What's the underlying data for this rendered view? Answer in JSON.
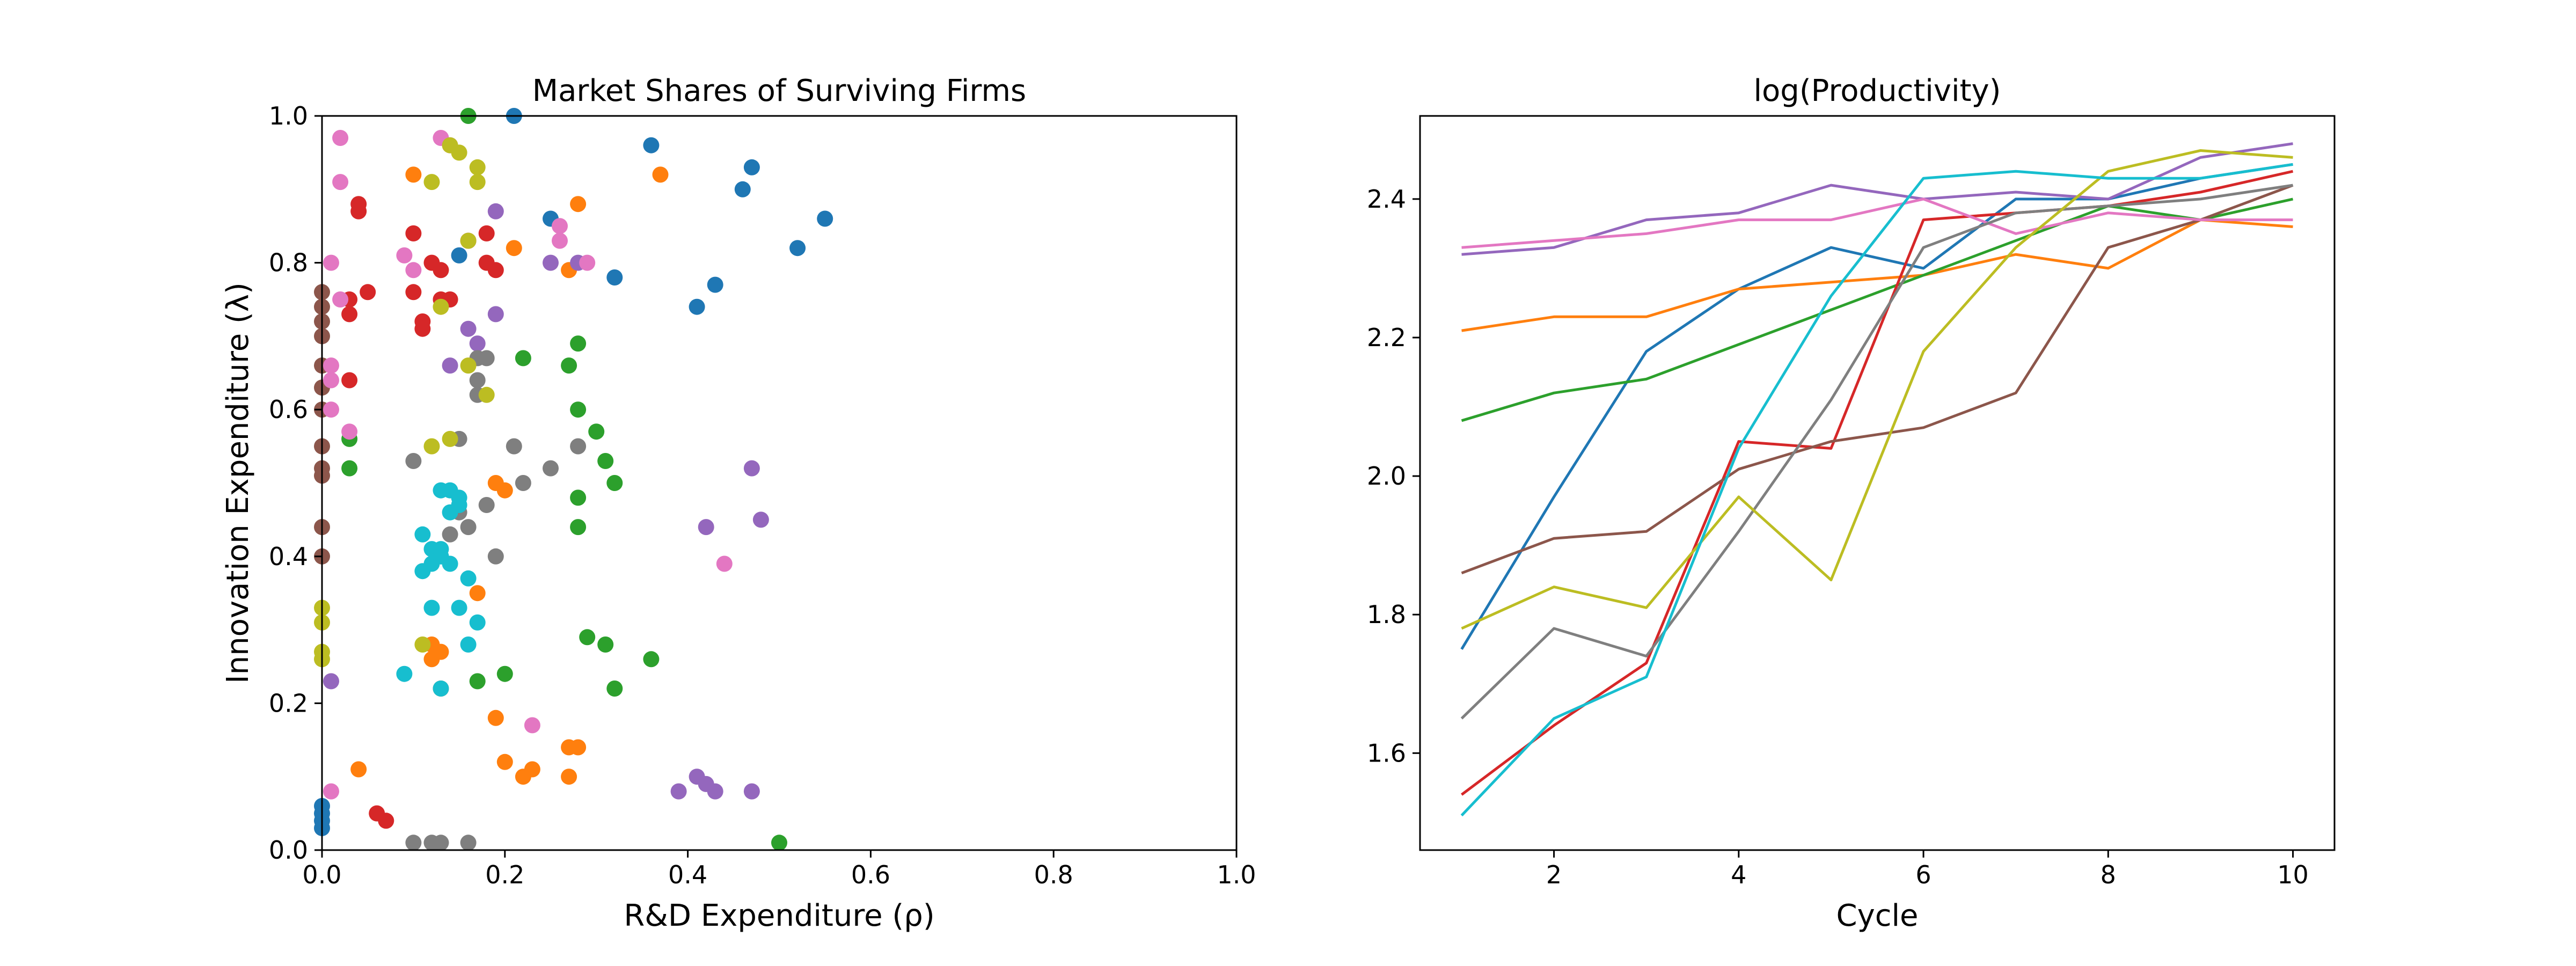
{
  "chart_data": [
    {
      "type": "scatter",
      "title": "Market Shares of Surviving Firms",
      "xlabel": "R&D Expenditure (ρ)",
      "ylabel": "Innovation Expenditure (λ)",
      "xlim": [
        0,
        1
      ],
      "ylim": [
        0,
        1
      ],
      "xticks": [
        "0.0",
        "0.2",
        "0.4",
        "0.6",
        "0.8",
        "1.0"
      ],
      "yticks": [
        "0.0",
        "0.2",
        "0.4",
        "0.6",
        "0.8",
        "1.0"
      ],
      "grid": false,
      "legend": "none",
      "series": [
        {
          "color": "#1f77b4",
          "points": [
            [
              0.0,
              0.03
            ],
            [
              0.0,
              0.04
            ],
            [
              0.0,
              0.05
            ],
            [
              0.0,
              0.06
            ],
            [
              0.15,
              0.81
            ],
            [
              0.21,
              1.0
            ],
            [
              0.25,
              0.86
            ],
            [
              0.32,
              0.78
            ],
            [
              0.36,
              0.96
            ],
            [
              0.41,
              0.74
            ],
            [
              0.43,
              0.77
            ],
            [
              0.46,
              0.9
            ],
            [
              0.47,
              0.93
            ],
            [
              0.52,
              0.82
            ],
            [
              0.55,
              0.86
            ]
          ]
        },
        {
          "color": "#ff7f0e",
          "points": [
            [
              0.04,
              0.11
            ],
            [
              0.1,
              0.92
            ],
            [
              0.12,
              0.28
            ],
            [
              0.12,
              0.26
            ],
            [
              0.13,
              0.27
            ],
            [
              0.13,
              0.22
            ],
            [
              0.17,
              0.35
            ],
            [
              0.19,
              0.5
            ],
            [
              0.19,
              0.18
            ],
            [
              0.2,
              0.49
            ],
            [
              0.2,
              0.12
            ],
            [
              0.21,
              0.82
            ],
            [
              0.22,
              0.1
            ],
            [
              0.23,
              0.11
            ],
            [
              0.27,
              0.79
            ],
            [
              0.27,
              0.14
            ],
            [
              0.27,
              0.1
            ],
            [
              0.28,
              0.88
            ],
            [
              0.28,
              0.14
            ],
            [
              0.37,
              0.92
            ]
          ]
        },
        {
          "color": "#2ca02c",
          "points": [
            [
              0.03,
              0.56
            ],
            [
              0.03,
              0.52
            ],
            [
              0.16,
              1.0
            ],
            [
              0.17,
              0.23
            ],
            [
              0.2,
              0.24
            ],
            [
              0.22,
              0.67
            ],
            [
              0.27,
              0.66
            ],
            [
              0.28,
              0.6
            ],
            [
              0.28,
              0.48
            ],
            [
              0.28,
              0.44
            ],
            [
              0.28,
              0.69
            ],
            [
              0.29,
              0.29
            ],
            [
              0.3,
              0.57
            ],
            [
              0.31,
              0.53
            ],
            [
              0.31,
              0.28
            ],
            [
              0.32,
              0.5
            ],
            [
              0.32,
              0.22
            ],
            [
              0.36,
              0.26
            ],
            [
              0.5,
              0.01
            ]
          ]
        },
        {
          "color": "#d62728",
          "points": [
            [
              0.03,
              0.73
            ],
            [
              0.03,
              0.75
            ],
            [
              0.03,
              0.64
            ],
            [
              0.04,
              0.88
            ],
            [
              0.04,
              0.87
            ],
            [
              0.05,
              0.76
            ],
            [
              0.06,
              0.05
            ],
            [
              0.07,
              0.04
            ],
            [
              0.1,
              0.84
            ],
            [
              0.1,
              0.76
            ],
            [
              0.11,
              0.72
            ],
            [
              0.11,
              0.71
            ],
            [
              0.12,
              0.8
            ],
            [
              0.13,
              0.75
            ],
            [
              0.13,
              0.79
            ],
            [
              0.14,
              0.75
            ],
            [
              0.16,
              0.83
            ],
            [
              0.18,
              0.84
            ],
            [
              0.18,
              0.8
            ],
            [
              0.19,
              0.79
            ]
          ]
        },
        {
          "color": "#9467bd",
          "points": [
            [
              0.01,
              0.23
            ],
            [
              0.14,
              0.66
            ],
            [
              0.16,
              0.71
            ],
            [
              0.17,
              0.69
            ],
            [
              0.19,
              0.87
            ],
            [
              0.19,
              0.73
            ],
            [
              0.25,
              0.8
            ],
            [
              0.28,
              0.8
            ],
            [
              0.39,
              0.08
            ],
            [
              0.41,
              0.1
            ],
            [
              0.42,
              0.09
            ],
            [
              0.42,
              0.44
            ],
            [
              0.43,
              0.08
            ],
            [
              0.47,
              0.52
            ],
            [
              0.47,
              0.08
            ],
            [
              0.48,
              0.45
            ]
          ]
        },
        {
          "color": "#8c564b",
          "points": [
            [
              0.0,
              0.76
            ],
            [
              0.0,
              0.74
            ],
            [
              0.0,
              0.72
            ],
            [
              0.0,
              0.7
            ],
            [
              0.0,
              0.66
            ],
            [
              0.0,
              0.63
            ],
            [
              0.0,
              0.6
            ],
            [
              0.0,
              0.55
            ],
            [
              0.0,
              0.52
            ],
            [
              0.0,
              0.51
            ],
            [
              0.0,
              0.44
            ],
            [
              0.0,
              0.4
            ]
          ]
        },
        {
          "color": "#e377c2",
          "points": [
            [
              0.01,
              0.8
            ],
            [
              0.01,
              0.66
            ],
            [
              0.01,
              0.64
            ],
            [
              0.01,
              0.6
            ],
            [
              0.01,
              0.08
            ],
            [
              0.02,
              0.97
            ],
            [
              0.02,
              0.91
            ],
            [
              0.02,
              0.75
            ],
            [
              0.03,
              0.57
            ],
            [
              0.09,
              0.81
            ],
            [
              0.1,
              0.79
            ],
            [
              0.13,
              0.97
            ],
            [
              0.14,
              0.96
            ],
            [
              0.23,
              0.17
            ],
            [
              0.26,
              0.85
            ],
            [
              0.26,
              0.83
            ],
            [
              0.29,
              0.8
            ],
            [
              0.44,
              0.39
            ]
          ]
        },
        {
          "color": "#7f7f7f",
          "points": [
            [
              0.1,
              0.53
            ],
            [
              0.1,
              0.01
            ],
            [
              0.12,
              0.01
            ],
            [
              0.13,
              0.01
            ],
            [
              0.14,
              0.43
            ],
            [
              0.15,
              0.56
            ],
            [
              0.15,
              0.46
            ],
            [
              0.16,
              0.44
            ],
            [
              0.16,
              0.01
            ],
            [
              0.17,
              0.67
            ],
            [
              0.17,
              0.64
            ],
            [
              0.17,
              0.62
            ],
            [
              0.18,
              0.47
            ],
            [
              0.18,
              0.67
            ],
            [
              0.19,
              0.4
            ],
            [
              0.21,
              0.55
            ],
            [
              0.22,
              0.5
            ],
            [
              0.25,
              0.52
            ],
            [
              0.28,
              0.55
            ]
          ]
        },
        {
          "color": "#bcbd22",
          "points": [
            [
              0.0,
              0.33
            ],
            [
              0.0,
              0.31
            ],
            [
              0.0,
              0.27
            ],
            [
              0.0,
              0.26
            ],
            [
              0.11,
              0.28
            ],
            [
              0.12,
              0.55
            ],
            [
              0.12,
              0.91
            ],
            [
              0.13,
              0.74
            ],
            [
              0.14,
              0.96
            ],
            [
              0.14,
              0.56
            ],
            [
              0.15,
              0.95
            ],
            [
              0.16,
              0.83
            ],
            [
              0.17,
              0.91
            ],
            [
              0.17,
              0.93
            ],
            [
              0.18,
              0.62
            ],
            [
              0.16,
              0.66
            ]
          ]
        },
        {
          "color": "#17becf",
          "points": [
            [
              0.09,
              0.24
            ],
            [
              0.11,
              0.43
            ],
            [
              0.11,
              0.38
            ],
            [
              0.12,
              0.41
            ],
            [
              0.12,
              0.39
            ],
            [
              0.13,
              0.41
            ],
            [
              0.13,
              0.4
            ],
            [
              0.13,
              0.49
            ],
            [
              0.14,
              0.49
            ],
            [
              0.14,
              0.46
            ],
            [
              0.14,
              0.39
            ],
            [
              0.15,
              0.48
            ],
            [
              0.15,
              0.47
            ],
            [
              0.15,
              0.33
            ],
            [
              0.12,
              0.33
            ],
            [
              0.13,
              0.22
            ],
            [
              0.16,
              0.37
            ],
            [
              0.17,
              0.31
            ],
            [
              0.16,
              0.28
            ],
            [
              0.13,
              0.4
            ]
          ]
        }
      ]
    },
    {
      "type": "line",
      "title": "log(Productivity)",
      "xlabel": "Cycle",
      "ylabel": "",
      "xlim": [
        0.55,
        10.45
      ],
      "ylim": [
        1.46,
        2.52
      ],
      "xticks": [
        2,
        4,
        6,
        8,
        10
      ],
      "yticks": [
        "1.6",
        "1.8",
        "2.0",
        "2.2",
        "2.4"
      ],
      "grid": false,
      "legend": "none",
      "x": [
        1,
        2,
        3,
        4,
        5,
        6,
        7,
        8,
        9,
        10
      ],
      "series": [
        {
          "color": "#1f77b4",
          "values": [
            1.75,
            1.97,
            2.18,
            2.27,
            2.33,
            2.3,
            2.4,
            2.4,
            2.43,
            2.45
          ]
        },
        {
          "color": "#ff7f0e",
          "values": [
            2.21,
            2.23,
            2.23,
            2.27,
            2.28,
            2.29,
            2.32,
            2.3,
            2.37,
            2.36
          ]
        },
        {
          "color": "#2ca02c",
          "values": [
            2.08,
            2.12,
            2.14,
            2.19,
            2.24,
            2.29,
            2.34,
            2.39,
            2.37,
            2.4
          ]
        },
        {
          "color": "#d62728",
          "values": [
            1.54,
            1.64,
            1.73,
            2.05,
            2.04,
            2.37,
            2.38,
            2.39,
            2.41,
            2.44
          ]
        },
        {
          "color": "#9467bd",
          "values": [
            2.32,
            2.33,
            2.37,
            2.38,
            2.42,
            2.4,
            2.41,
            2.4,
            2.46,
            2.48
          ]
        },
        {
          "color": "#8c564b",
          "values": [
            1.86,
            1.91,
            1.92,
            2.01,
            2.05,
            2.07,
            2.12,
            2.33,
            2.37,
            2.42
          ]
        },
        {
          "color": "#e377c2",
          "values": [
            2.33,
            2.34,
            2.35,
            2.37,
            2.37,
            2.4,
            2.35,
            2.38,
            2.37,
            2.37
          ]
        },
        {
          "color": "#7f7f7f",
          "values": [
            1.65,
            1.78,
            1.74,
            1.92,
            2.11,
            2.33,
            2.38,
            2.39,
            2.4,
            2.42
          ]
        },
        {
          "color": "#bcbd22",
          "values": [
            1.78,
            1.84,
            1.81,
            1.97,
            1.85,
            2.18,
            2.33,
            2.44,
            2.47,
            2.46
          ]
        },
        {
          "color": "#17becf",
          "values": [
            1.51,
            1.65,
            1.71,
            2.04,
            2.26,
            2.43,
            2.44,
            2.43,
            2.43,
            2.45
          ]
        }
      ]
    }
  ]
}
